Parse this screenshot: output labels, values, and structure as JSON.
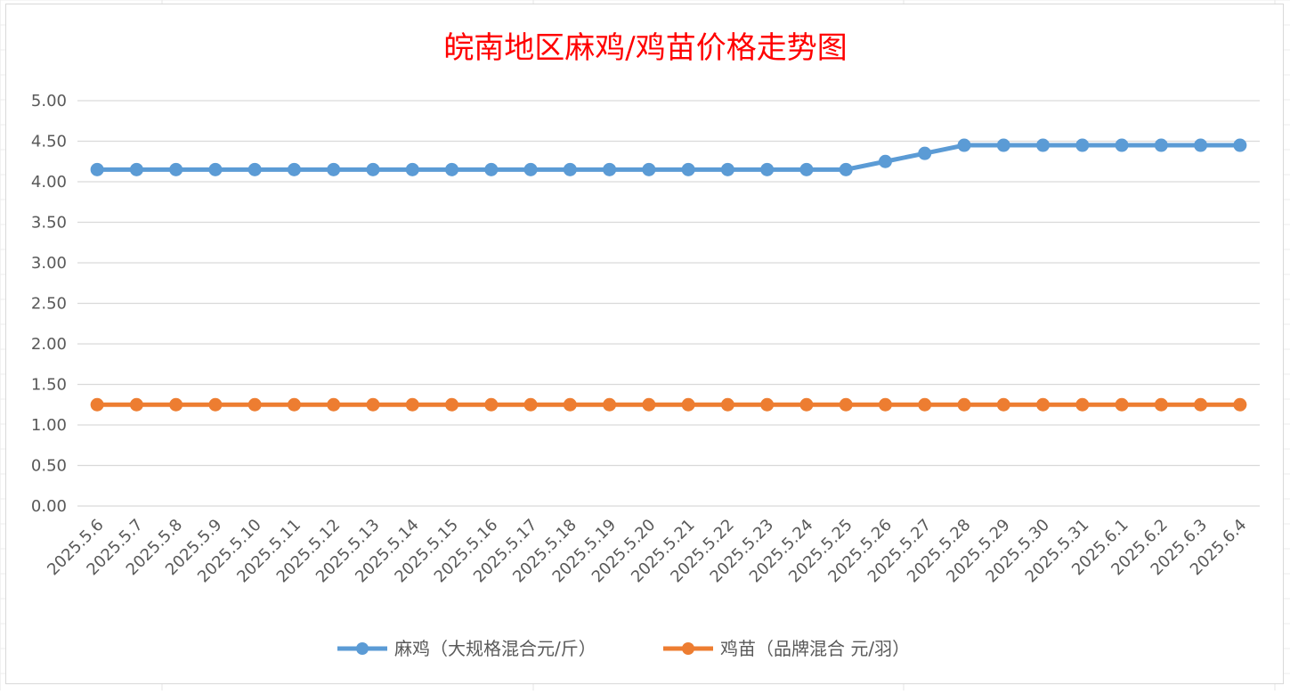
{
  "chart_data": {
    "type": "line",
    "title": "皖南地区麻鸡/鸡苗价格走势图",
    "xlabel": "",
    "ylabel": "",
    "ylim": [
      0,
      5
    ],
    "ytick_step": 0.5,
    "yticks": [
      "0.00",
      "0.50",
      "1.00",
      "1.50",
      "2.00",
      "2.50",
      "3.00",
      "3.50",
      "4.00",
      "4.50",
      "5.00"
    ],
    "grid": true,
    "legend_position": "bottom",
    "categories": [
      "2025.5.6",
      "2025.5.7",
      "2025.5.8",
      "2025.5.9",
      "2025.5.10",
      "2025.5.11",
      "2025.5.12",
      "2025.5.13",
      "2025.5.14",
      "2025.5.15",
      "2025.5.16",
      "2025.5.17",
      "2025.5.18",
      "2025.5.19",
      "2025.5.20",
      "2025.5.21",
      "2025.5.22",
      "2025.5.23",
      "2025.5.24",
      "2025.5.25",
      "2025.5.26",
      "2025.5.27",
      "2025.5.28",
      "2025.5.29",
      "2025.5.30",
      "2025.5.31",
      "2025.6.1",
      "2025.6.2",
      "2025.6.3",
      "2025.6.4"
    ],
    "series": [
      {
        "name": "麻鸡（大规格混合元/斤）",
        "color": "#5b9bd5",
        "values": [
          4.15,
          4.15,
          4.15,
          4.15,
          4.15,
          4.15,
          4.15,
          4.15,
          4.15,
          4.15,
          4.15,
          4.15,
          4.15,
          4.15,
          4.15,
          4.15,
          4.15,
          4.15,
          4.15,
          4.15,
          4.25,
          4.35,
          4.45,
          4.45,
          4.45,
          4.45,
          4.45,
          4.45,
          4.45,
          4.45
        ]
      },
      {
        "name": "鸡苗（品牌混合 元/羽）",
        "color": "#ed7d31",
        "values": [
          1.25,
          1.25,
          1.25,
          1.25,
          1.25,
          1.25,
          1.25,
          1.25,
          1.25,
          1.25,
          1.25,
          1.25,
          1.25,
          1.25,
          1.25,
          1.25,
          1.25,
          1.25,
          1.25,
          1.25,
          1.25,
          1.25,
          1.25,
          1.25,
          1.25,
          1.25,
          1.25,
          1.25,
          1.25,
          1.25
        ]
      }
    ]
  }
}
